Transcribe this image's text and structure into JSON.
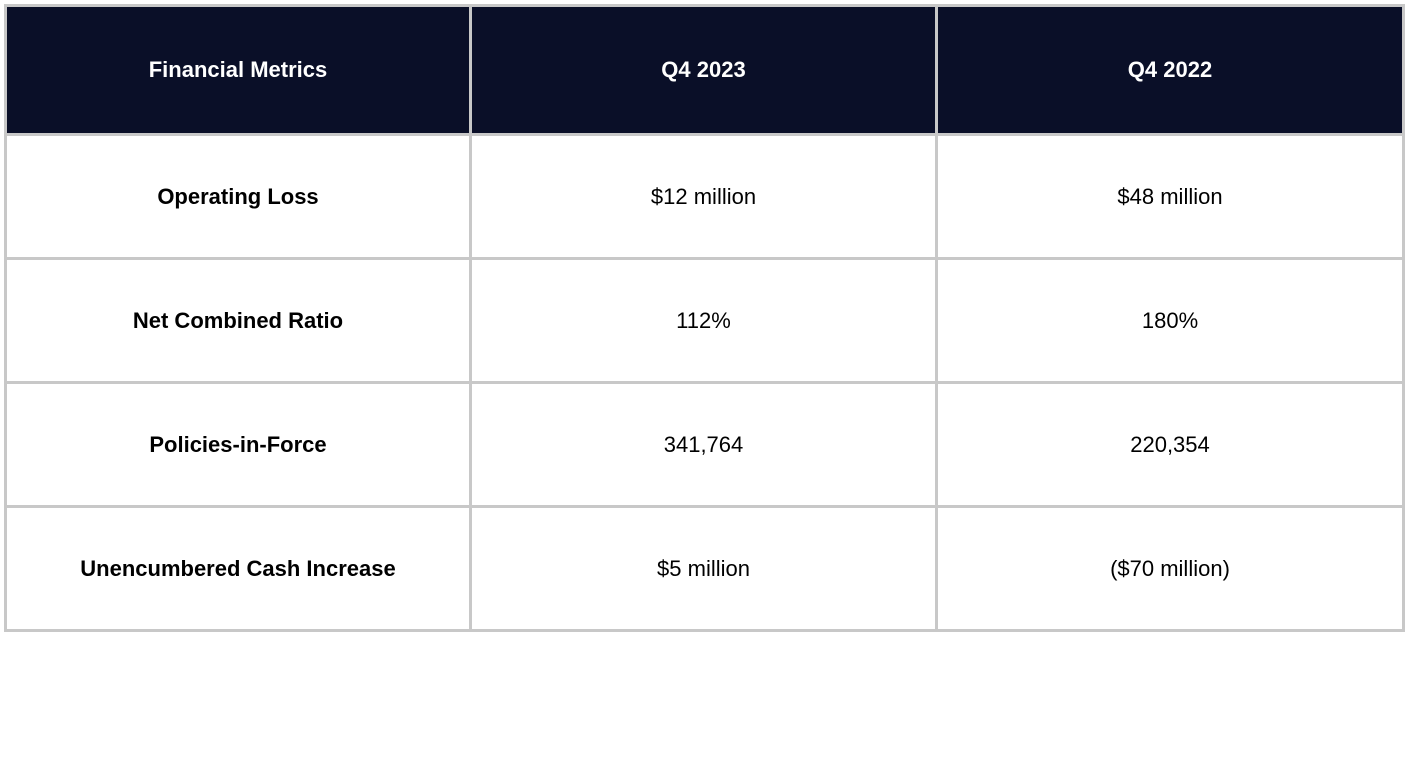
{
  "table": {
    "headers": [
      "Financial Metrics",
      "Q4 2023",
      "Q4 2022"
    ],
    "rows": [
      {
        "metric": "Operating Loss",
        "q4_2023": "$12 million",
        "q4_2022": "$48 million"
      },
      {
        "metric": "Net Combined Ratio",
        "q4_2023": "112%",
        "q4_2022": "180%"
      },
      {
        "metric": "Policies-in-Force",
        "q4_2023": "341,764",
        "q4_2022": "220,354"
      },
      {
        "metric": "Unencumbered Cash Increase",
        "q4_2023": "$5 million",
        "q4_2022": "($70 million)"
      }
    ]
  },
  "colors": {
    "header_background": "#0a0f28",
    "header_text": "#ffffff",
    "border": "#c8c8c8",
    "body_text": "#000000"
  }
}
